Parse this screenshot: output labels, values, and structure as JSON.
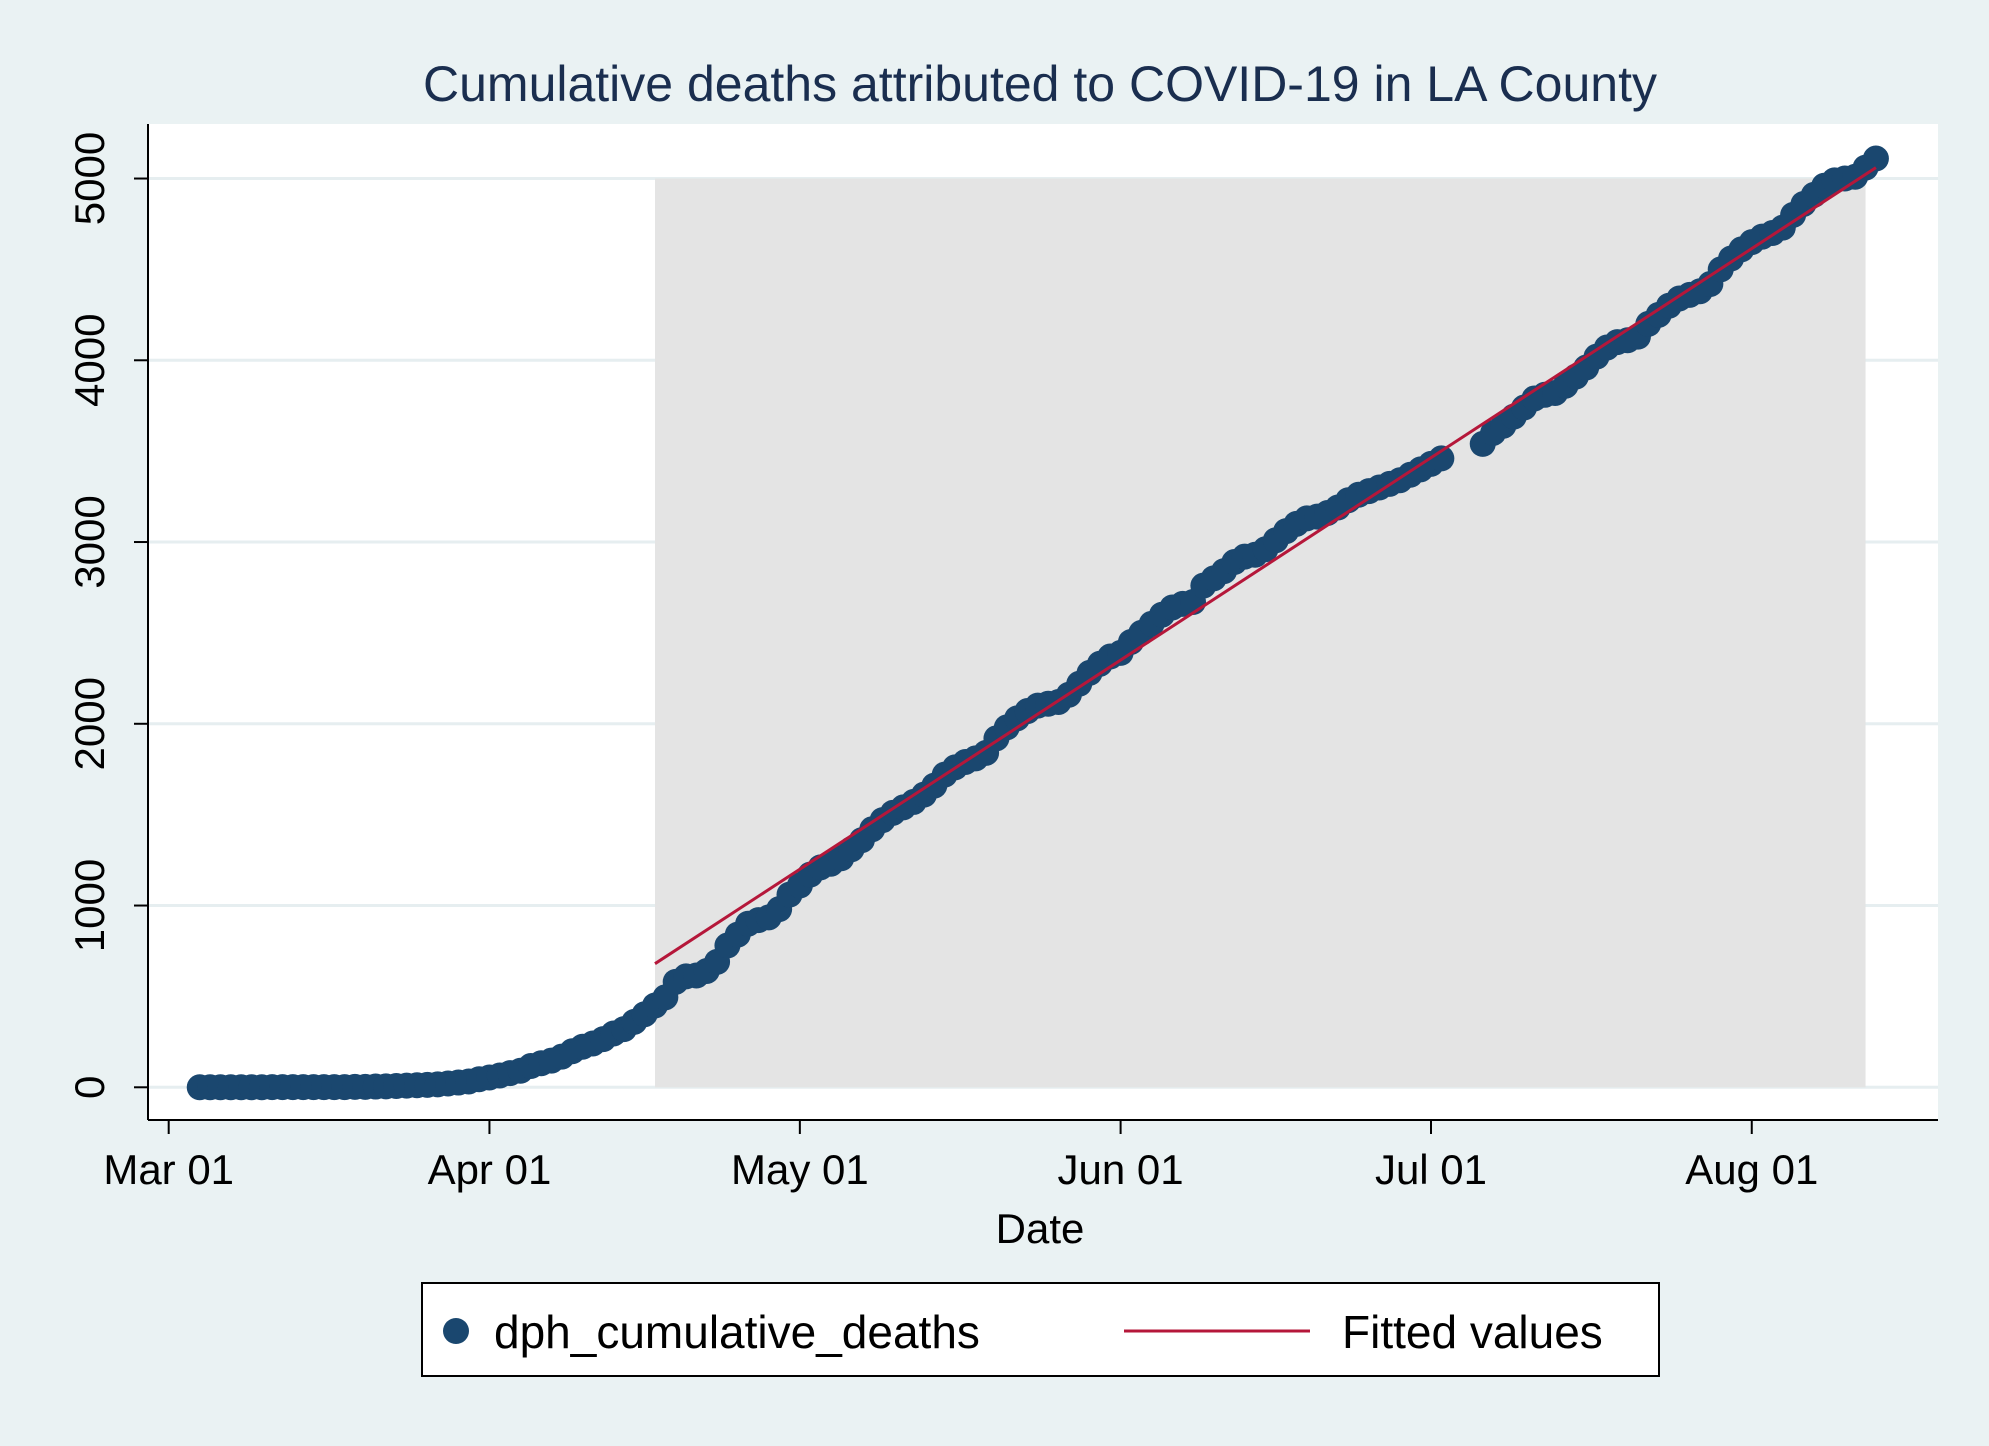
{
  "chart_data": {
    "type": "scatter",
    "title": "Cumulative deaths attributed to COVID-19 in LA County",
    "xlabel": "Date",
    "ylabel": "",
    "x_ticks": [
      "Mar 01",
      "Apr 01",
      "May 01",
      "Jun 01",
      "Jul 01",
      "Aug 01"
    ],
    "y_ticks": [
      "0",
      "1000",
      "2000",
      "3000",
      "4000",
      "5000"
    ],
    "xlim": [
      "2020-02-28",
      "2020-08-19"
    ],
    "ylim": [
      -180,
      5300
    ],
    "grid": true,
    "shaded_region": {
      "x": [
        "2020-04-17",
        "2020-08-12"
      ],
      "y": [
        0,
        5000
      ]
    },
    "legend": {
      "placement": "bottom"
    },
    "series": [
      {
        "name": "dph_cumulative_deaths",
        "kind": "scatter",
        "color": "#1a476f",
        "points": [
          [
            "2020-03-04",
            0
          ],
          [
            "2020-03-05",
            0
          ],
          [
            "2020-03-06",
            0
          ],
          [
            "2020-03-07",
            0
          ],
          [
            "2020-03-08",
            0
          ],
          [
            "2020-03-09",
            0
          ],
          [
            "2020-03-10",
            0
          ],
          [
            "2020-03-11",
            1
          ],
          [
            "2020-03-12",
            1
          ],
          [
            "2020-03-13",
            1
          ],
          [
            "2020-03-14",
            1
          ],
          [
            "2020-03-15",
            1
          ],
          [
            "2020-03-16",
            1
          ],
          [
            "2020-03-17",
            1
          ],
          [
            "2020-03-18",
            1
          ],
          [
            "2020-03-19",
            2
          ],
          [
            "2020-03-20",
            2
          ],
          [
            "2020-03-21",
            4
          ],
          [
            "2020-03-22",
            5
          ],
          [
            "2020-03-23",
            7
          ],
          [
            "2020-03-24",
            9
          ],
          [
            "2020-03-25",
            11
          ],
          [
            "2020-03-26",
            13
          ],
          [
            "2020-03-27",
            16
          ],
          [
            "2020-03-28",
            21
          ],
          [
            "2020-03-29",
            26
          ],
          [
            "2020-03-30",
            32
          ],
          [
            "2020-03-31",
            44
          ],
          [
            "2020-04-01",
            54
          ],
          [
            "2020-04-02",
            65
          ],
          [
            "2020-04-03",
            78
          ],
          [
            "2020-04-04",
            91
          ],
          [
            "2020-04-05",
            117
          ],
          [
            "2020-04-06",
            132
          ],
          [
            "2020-04-07",
            147
          ],
          [
            "2020-04-08",
            169
          ],
          [
            "2020-04-09",
            198
          ],
          [
            "2020-04-10",
            223
          ],
          [
            "2020-04-11",
            241
          ],
          [
            "2020-04-12",
            265
          ],
          [
            "2020-04-13",
            296
          ],
          [
            "2020-04-14",
            320
          ],
          [
            "2020-04-15",
            360
          ],
          [
            "2020-04-16",
            402
          ],
          [
            "2020-04-17",
            450
          ],
          [
            "2020-04-18",
            495
          ],
          [
            "2020-04-19",
            580
          ],
          [
            "2020-04-20",
            610
          ],
          [
            "2020-04-21",
            615
          ],
          [
            "2020-04-22",
            640
          ],
          [
            "2020-04-23",
            690
          ],
          [
            "2020-04-24",
            780
          ],
          [
            "2020-04-25",
            840
          ],
          [
            "2020-04-26",
            900
          ],
          [
            "2020-04-27",
            920
          ],
          [
            "2020-04-28",
            935
          ],
          [
            "2020-04-29",
            980
          ],
          [
            "2020-04-30",
            1060
          ],
          [
            "2020-05-01",
            1110
          ],
          [
            "2020-05-02",
            1170
          ],
          [
            "2020-05-03",
            1210
          ],
          [
            "2020-05-04",
            1230
          ],
          [
            "2020-05-05",
            1260
          ],
          [
            "2020-05-06",
            1310
          ],
          [
            "2020-05-07",
            1360
          ],
          [
            "2020-05-08",
            1420
          ],
          [
            "2020-05-09",
            1470
          ],
          [
            "2020-05-10",
            1510
          ],
          [
            "2020-05-11",
            1540
          ],
          [
            "2020-05-12",
            1570
          ],
          [
            "2020-05-13",
            1610
          ],
          [
            "2020-05-14",
            1660
          ],
          [
            "2020-05-15",
            1720
          ],
          [
            "2020-05-16",
            1760
          ],
          [
            "2020-05-17",
            1790
          ],
          [
            "2020-05-18",
            1810
          ],
          [
            "2020-05-19",
            1840
          ],
          [
            "2020-05-20",
            1920
          ],
          [
            "2020-05-21",
            1980
          ],
          [
            "2020-05-22",
            2030
          ],
          [
            "2020-05-23",
            2070
          ],
          [
            "2020-05-24",
            2100
          ],
          [
            "2020-05-25",
            2110
          ],
          [
            "2020-05-26",
            2120
          ],
          [
            "2020-05-27",
            2160
          ],
          [
            "2020-05-28",
            2220
          ],
          [
            "2020-05-29",
            2280
          ],
          [
            "2020-05-30",
            2330
          ],
          [
            "2020-05-31",
            2370
          ],
          [
            "2020-06-01",
            2390
          ],
          [
            "2020-06-02",
            2450
          ],
          [
            "2020-06-03",
            2500
          ],
          [
            "2020-06-04",
            2550
          ],
          [
            "2020-06-05",
            2600
          ],
          [
            "2020-06-06",
            2640
          ],
          [
            "2020-06-07",
            2660
          ],
          [
            "2020-06-08",
            2670
          ],
          [
            "2020-06-09",
            2760
          ],
          [
            "2020-06-10",
            2800
          ],
          [
            "2020-06-11",
            2840
          ],
          [
            "2020-06-12",
            2890
          ],
          [
            "2020-06-13",
            2920
          ],
          [
            "2020-06-14",
            2930
          ],
          [
            "2020-06-15",
            2960
          ],
          [
            "2020-06-16",
            3010
          ],
          [
            "2020-06-17",
            3060
          ],
          [
            "2020-06-18",
            3100
          ],
          [
            "2020-06-19",
            3130
          ],
          [
            "2020-06-20",
            3140
          ],
          [
            "2020-06-21",
            3160
          ],
          [
            "2020-06-22",
            3190
          ],
          [
            "2020-06-23",
            3230
          ],
          [
            "2020-06-24",
            3260
          ],
          [
            "2020-06-25",
            3280
          ],
          [
            "2020-06-26",
            3300
          ],
          [
            "2020-06-27",
            3320
          ],
          [
            "2020-06-28",
            3340
          ],
          [
            "2020-06-29",
            3370
          ],
          [
            "2020-06-30",
            3400
          ],
          [
            "2020-07-01",
            3430
          ],
          [
            "2020-07-02",
            3460
          ],
          [
            "2020-07-06",
            3540
          ],
          [
            "2020-07-07",
            3600
          ],
          [
            "2020-07-08",
            3640
          ],
          [
            "2020-07-09",
            3690
          ],
          [
            "2020-07-10",
            3740
          ],
          [
            "2020-07-11",
            3790
          ],
          [
            "2020-07-12",
            3810
          ],
          [
            "2020-07-13",
            3820
          ],
          [
            "2020-07-14",
            3860
          ],
          [
            "2020-07-15",
            3910
          ],
          [
            "2020-07-16",
            3960
          ],
          [
            "2020-07-17",
            4020
          ],
          [
            "2020-07-18",
            4070
          ],
          [
            "2020-07-19",
            4100
          ],
          [
            "2020-07-20",
            4110
          ],
          [
            "2020-07-21",
            4130
          ],
          [
            "2020-07-22",
            4200
          ],
          [
            "2020-07-23",
            4250
          ],
          [
            "2020-07-24",
            4300
          ],
          [
            "2020-07-25",
            4340
          ],
          [
            "2020-07-26",
            4360
          ],
          [
            "2020-07-27",
            4380
          ],
          [
            "2020-07-28",
            4420
          ],
          [
            "2020-07-29",
            4500
          ],
          [
            "2020-07-30",
            4560
          ],
          [
            "2020-07-31",
            4610
          ],
          [
            "2020-08-01",
            4650
          ],
          [
            "2020-08-02",
            4680
          ],
          [
            "2020-08-03",
            4700
          ],
          [
            "2020-08-04",
            4730
          ],
          [
            "2020-08-05",
            4800
          ],
          [
            "2020-08-06",
            4860
          ],
          [
            "2020-08-07",
            4910
          ],
          [
            "2020-08-08",
            4960
          ],
          [
            "2020-08-09",
            4990
          ],
          [
            "2020-08-10",
            5000
          ],
          [
            "2020-08-11",
            5010
          ],
          [
            "2020-08-12",
            5060
          ],
          [
            "2020-08-13",
            5110
          ]
        ]
      },
      {
        "name": "Fitted values",
        "kind": "line",
        "color": "#b5173a",
        "points": [
          [
            "2020-04-17",
            680
          ],
          [
            "2020-08-13",
            5060
          ]
        ]
      }
    ]
  }
}
